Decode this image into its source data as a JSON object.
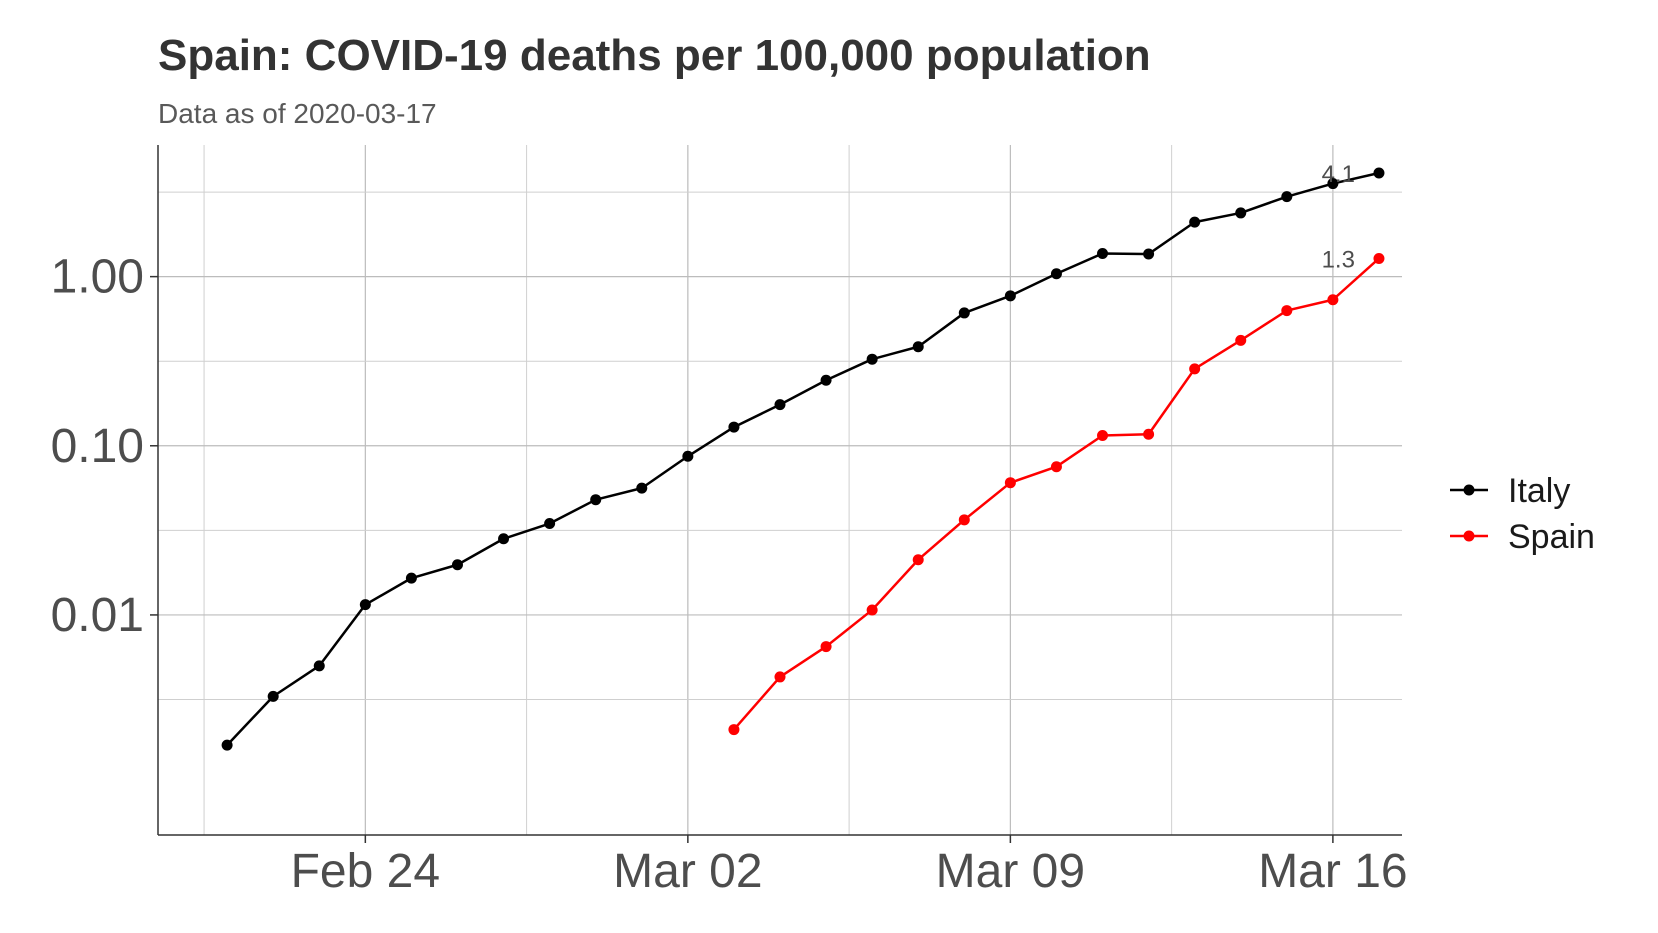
{
  "chart_data": {
    "type": "line",
    "title": "Spain: COVID-19 deaths per 100,000 population",
    "subtitle": "Data as of 2020-03-17",
    "xlabel": "",
    "ylabel": "",
    "yscale": "log10",
    "ylim": [
      0.0005,
      6
    ],
    "xlim_days": [
      -1.5,
      25.5
    ],
    "date_origin": "2020-02-21",
    "x_ticks": [
      {
        "day": 3,
        "label": "Feb 24"
      },
      {
        "day": 10,
        "label": "Mar 02"
      },
      {
        "day": 17,
        "label": "Mar 09"
      },
      {
        "day": 24,
        "label": "Mar 16"
      }
    ],
    "x_minor_days": [
      -0.5,
      6.5,
      13.5,
      20.5
    ],
    "y_ticks": [
      {
        "value": 0.01,
        "label": "0.01"
      },
      {
        "value": 0.1,
        "label": "0.10"
      },
      {
        "value": 1,
        "label": "1.00"
      }
    ],
    "y_minor": [
      0.00316,
      0.0316,
      0.316,
      3.16
    ],
    "grid": true,
    "legend_position": "right",
    "series": [
      {
        "name": "Italy",
        "color": "#000000",
        "end_label": "4.1",
        "days": [
          0,
          1,
          2,
          3,
          4,
          5,
          6,
          7,
          8,
          9,
          10,
          11,
          12,
          13,
          14,
          15,
          16,
          17,
          18,
          19,
          20,
          21,
          22,
          23,
          24,
          25
        ],
        "values": [
          0.0017,
          0.0033,
          0.005,
          0.0115,
          0.0165,
          0.0198,
          0.0282,
          0.0347,
          0.048,
          0.0562,
          0.0867,
          0.129,
          0.175,
          0.244,
          0.325,
          0.385,
          0.61,
          0.77,
          1.04,
          1.37,
          1.36,
          2.1,
          2.38,
          2.97,
          3.55,
          4.1
        ]
      },
      {
        "name": "Spain",
        "color": "#ff0000",
        "end_label": "1.3",
        "days": [
          11,
          12,
          13,
          14,
          15,
          16,
          17,
          18,
          19,
          20,
          21,
          22,
          23,
          24,
          25
        ],
        "values": [
          0.0021,
          0.0043,
          0.0065,
          0.0107,
          0.0212,
          0.0365,
          0.0605,
          0.0752,
          0.115,
          0.117,
          0.285,
          0.42,
          0.63,
          0.73,
          1.28
        ]
      }
    ]
  }
}
